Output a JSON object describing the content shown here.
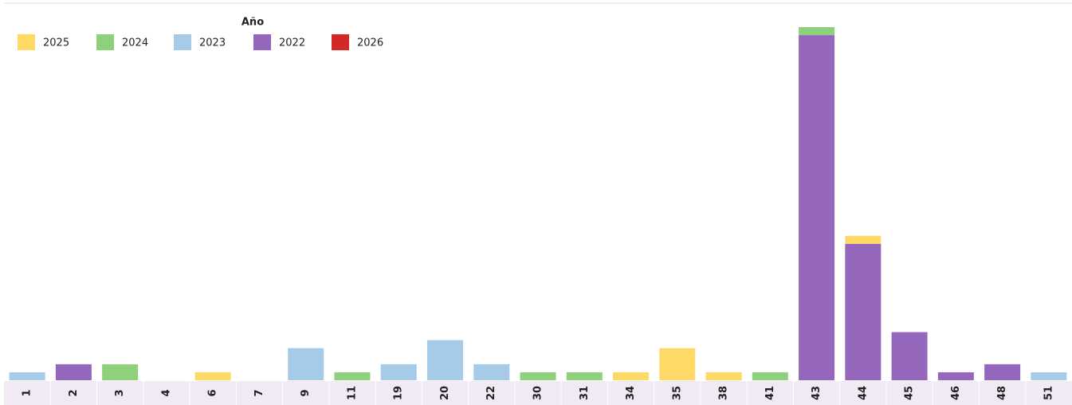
{
  "chart_data": {
    "type": "stacked-bar",
    "legend_title": "Año",
    "categories": [
      "1",
      "2",
      "3",
      "4",
      "6",
      "7",
      "9",
      "11",
      "19",
      "20",
      "22",
      "30",
      "31",
      "34",
      "35",
      "38",
      "41",
      "43",
      "44",
      "45",
      "46",
      "48",
      "51"
    ],
    "series": [
      {
        "name": "2025",
        "color": "#ffd966",
        "values": [
          null,
          null,
          null,
          null,
          1,
          null,
          null,
          null,
          null,
          null,
          null,
          null,
          null,
          1,
          4,
          1,
          null,
          null,
          1,
          null,
          null,
          null,
          null
        ]
      },
      {
        "name": "2024",
        "color": "#8fd07c",
        "values": [
          null,
          null,
          2,
          null,
          null,
          null,
          null,
          1,
          null,
          null,
          null,
          1,
          1,
          null,
          null,
          null,
          1,
          1,
          null,
          null,
          null,
          null,
          null
        ]
      },
      {
        "name": "2023",
        "color": "#a6cbe8",
        "values": [
          1,
          null,
          null,
          null,
          null,
          null,
          4,
          null,
          2,
          5,
          2,
          null,
          null,
          null,
          null,
          null,
          null,
          null,
          null,
          null,
          null,
          null,
          1
        ]
      },
      {
        "name": "2022",
        "color": "#9467bd",
        "values": [
          null,
          2,
          null,
          null,
          null,
          null,
          null,
          null,
          null,
          null,
          null,
          null,
          null,
          null,
          null,
          null,
          null,
          43,
          17,
          6,
          1,
          2,
          null
        ]
      },
      {
        "name": "2026",
        "color": "#d62728",
        "values": [
          null,
          null,
          null,
          null,
          null,
          null,
          null,
          null,
          null,
          null,
          null,
          null,
          null,
          null,
          null,
          null,
          null,
          null,
          null,
          null,
          null,
          null,
          null
        ]
      }
    ]
  }
}
